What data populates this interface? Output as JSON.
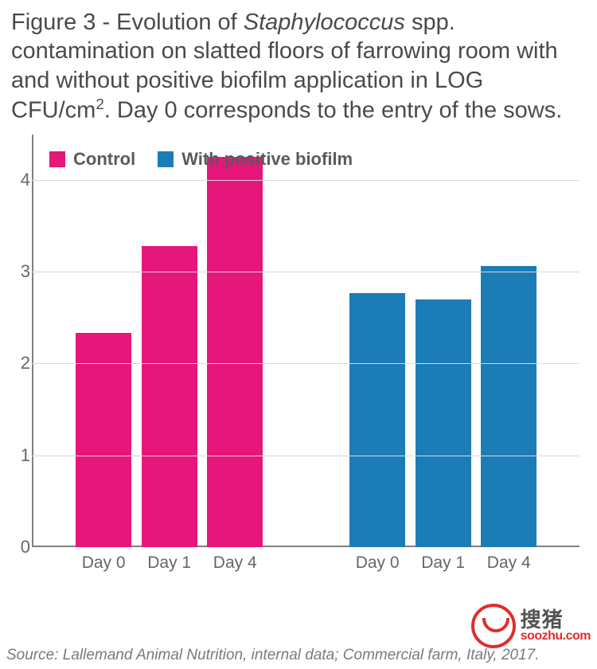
{
  "title": {
    "prefix": "Figure 3 - Evolution of ",
    "italic": "Staphylococcus",
    "after_italic": " spp. contamination on slatted floors of farrowing room with and without positive biofilm application in LOG CFU/cm",
    "sup": "2",
    "suffix": ". Day 0 corresponds to the entry of the sows.",
    "fontsize": 29,
    "color": "#4a4a4a"
  },
  "chart": {
    "type": "bar",
    "background_color": "#ffffff",
    "axis_color": "#808080",
    "grid_color": "#d9d9d9",
    "label_color": "#666666",
    "label_fontsize": 21,
    "tick_fontsize": 22,
    "ylim": [
      0,
      4.5
    ],
    "yticks": [
      0,
      1,
      2,
      3,
      4
    ],
    "bar_width_pct": 10.2,
    "groups": [
      {
        "name": "Control",
        "color": "#e6167b",
        "bars": [
          {
            "label": "Day 0",
            "value": 2.33,
            "x_pct": 8
          },
          {
            "label": "Day 1",
            "value": 3.28,
            "x_pct": 20
          },
          {
            "label": "Day 4",
            "value": 4.25,
            "x_pct": 32
          }
        ]
      },
      {
        "name": "With positive biofilm",
        "color": "#1c7cb6",
        "bars": [
          {
            "label": "Day 0",
            "value": 2.77,
            "x_pct": 58
          },
          {
            "label": "Day 1",
            "value": 2.7,
            "x_pct": 70
          },
          {
            "label": "Day 4",
            "value": 3.06,
            "x_pct": 82
          }
        ]
      }
    ]
  },
  "legend": {
    "fontsize": 22,
    "color": "#5a5a5a",
    "items": [
      {
        "label": "Control",
        "swatch": "#e6167b"
      },
      {
        "label": "With positive biofilm",
        "swatch": "#1c7cb6"
      }
    ]
  },
  "source_line": "Source: Lallemand Animal Nutrition, internal data; Commercial farm, Italy, 2017.",
  "watermark": {
    "cn": "搜猪",
    "en": "soozhu.com",
    "color": "#d22"
  }
}
